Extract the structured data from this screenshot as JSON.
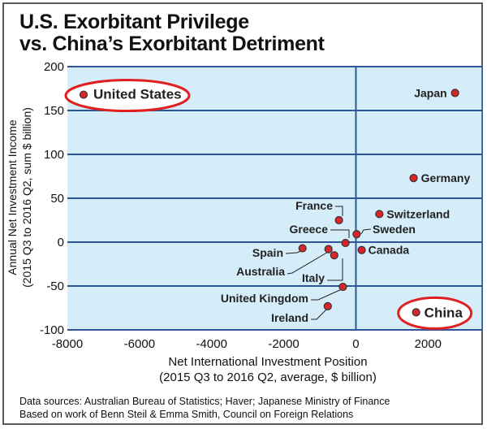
{
  "chart_data": {
    "type": "scatter",
    "title": [
      "U.S. Exorbitant Privilege",
      "vs. China’s Exorbitant Detriment"
    ],
    "xlabel": [
      "Net International Investment Position",
      "(2015 Q3 to 2016 Q2, average, $ billion)"
    ],
    "ylabel": [
      "Annual Net Investment Income",
      "(2015 Q3 to 2016 Q2, sum $ billion)"
    ],
    "xlim": [
      -8000,
      3500
    ],
    "ylim": [
      -100,
      200
    ],
    "x_ticks": [
      -8000,
      -6000,
      -4000,
      -2000,
      0,
      2000
    ],
    "y_ticks": [
      -100,
      -50,
      0,
      50,
      100,
      150,
      200
    ],
    "grid": true,
    "points": [
      {
        "name": "United States",
        "x": -7550,
        "y": 168,
        "highlight": true
      },
      {
        "name": "Japan",
        "x": 2750,
        "y": 170
      },
      {
        "name": "Germany",
        "x": 1600,
        "y": 73
      },
      {
        "name": "Switzerland",
        "x": 650,
        "y": 32
      },
      {
        "name": "France",
        "x": -470,
        "y": 25
      },
      {
        "name": "Sweden",
        "x": 20,
        "y": 9
      },
      {
        "name": "Greece",
        "x": -290,
        "y": -1
      },
      {
        "name": "Spain",
        "x": -1480,
        "y": -7
      },
      {
        "name": "Australia",
        "x": -760,
        "y": -8
      },
      {
        "name": "Italy",
        "x": -600,
        "y": -15
      },
      {
        "name": "Canada",
        "x": 160,
        "y": -9
      },
      {
        "name": "United Kingdom",
        "x": -360,
        "y": -51
      },
      {
        "name": "Ireland",
        "x": -780,
        "y": -73
      },
      {
        "name": "China",
        "x": 1670,
        "y": -80,
        "highlight": true
      }
    ],
    "colors": {
      "plot_bg": "#d5ecf9",
      "grid": "#2e5597",
      "point": "#d7262b",
      "highlight_ring": "#e02020"
    }
  },
  "footer": {
    "line1": "Data sources: Australian Bureau of Statistics; Haver; Japanese Ministry of Finance",
    "line2": "Based on work of Benn Steil & Emma Smith, Council on Foreign Relations"
  }
}
